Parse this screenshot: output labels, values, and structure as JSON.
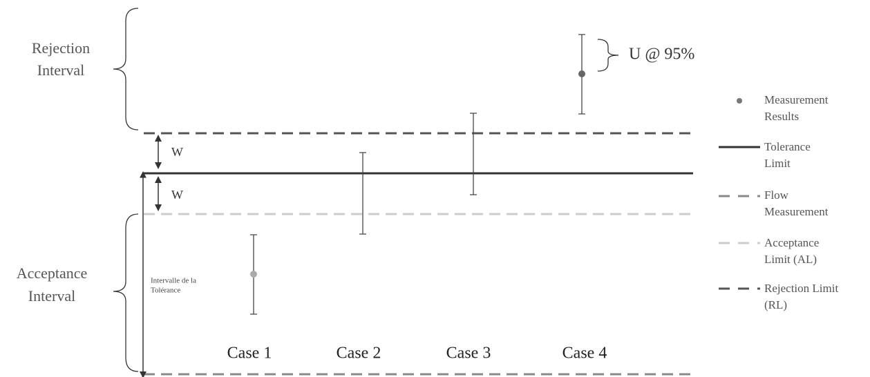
{
  "diagram": {
    "rejection_interval": [
      "Rejection",
      "Interval"
    ],
    "acceptance_interval": [
      "Acceptance",
      "Interval"
    ],
    "uncertainty_label": "U @ 95%",
    "w_labels": [
      "W",
      "W"
    ],
    "tolerance_interval": [
      "Intervalle de la",
      "Tolérance"
    ],
    "cases": [
      "Case 1",
      "Case 2",
      "Case 3",
      "Case 4"
    ],
    "legend": [
      {
        "lines": [
          "Measurement",
          "Results"
        ]
      },
      {
        "lines": [
          "Tolerance",
          "Limit"
        ]
      },
      {
        "lines": [
          "Flow",
          "Measurement"
        ]
      },
      {
        "lines": [
          "Acceptance",
          "Limit (AL)"
        ]
      },
      {
        "lines": [
          "Rejection Limit",
          "(RL)"
        ]
      }
    ]
  }
}
